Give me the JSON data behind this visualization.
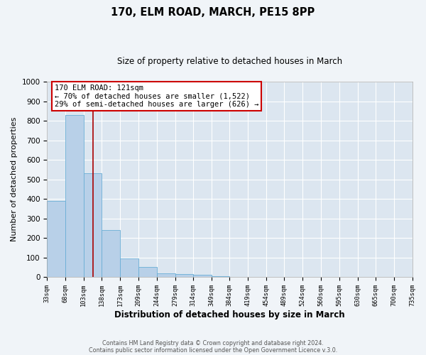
{
  "title": "170, ELM ROAD, MARCH, PE15 8PP",
  "subtitle": "Size of property relative to detached houses in March",
  "xlabel": "Distribution of detached houses by size in March",
  "ylabel": "Number of detached properties",
  "bar_values": [
    390,
    830,
    530,
    240,
    95,
    50,
    20,
    15,
    10,
    5,
    0,
    0,
    0,
    0,
    0,
    0,
    0,
    0,
    0,
    0
  ],
  "bin_edges": [
    33,
    68,
    103,
    138,
    173,
    209,
    244,
    279,
    314,
    349,
    384,
    419,
    454,
    489,
    524,
    560,
    595,
    630,
    665,
    700,
    735
  ],
  "tick_labels": [
    "33sqm",
    "68sqm",
    "103sqm",
    "138sqm",
    "173sqm",
    "209sqm",
    "244sqm",
    "279sqm",
    "314sqm",
    "349sqm",
    "384sqm",
    "419sqm",
    "454sqm",
    "489sqm",
    "524sqm",
    "560sqm",
    "595sqm",
    "630sqm",
    "665sqm",
    "700sqm",
    "735sqm"
  ],
  "property_size": 121,
  "bar_color": "#b8d0e8",
  "bar_edge_color": "#6aaed6",
  "vline_color": "#aa0000",
  "annotation_box_edge_color": "#cc0000",
  "annotation_title": "170 ELM ROAD: 121sqm",
  "annotation_line1": "← 70% of detached houses are smaller (1,522)",
  "annotation_line2": "29% of semi-detached houses are larger (626) →",
  "ylim": [
    0,
    1000
  ],
  "xlim_min": 33,
  "xlim_max": 735,
  "bg_color": "#dce6f0",
  "fig_bg_color": "#f0f4f8",
  "grid_color": "#ffffff",
  "footer1": "Contains HM Land Registry data © Crown copyright and database right 2024.",
  "footer2": "Contains public sector information licensed under the Open Government Licence v.3.0."
}
